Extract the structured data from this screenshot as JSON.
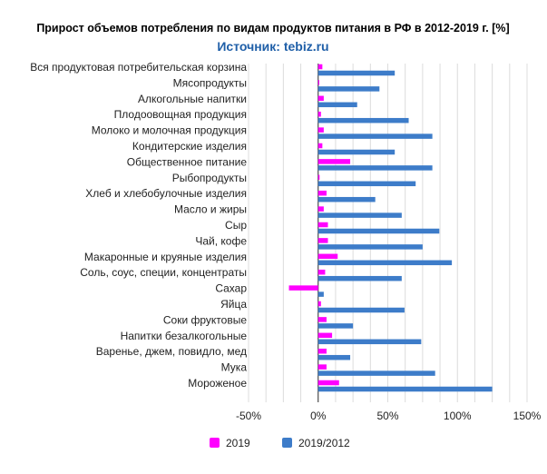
{
  "chart_data": {
    "type": "bar",
    "orientation": "horizontal",
    "title": "Прирост объемов потребления по видам продуктов питания в РФ в 2012-2019 г. [%]",
    "subtitle": "Источник: tebiz.ru",
    "categories": [
      "Вся продуктовая потребительская корзина",
      "Мясопродукты",
      "Алкогольные напитки",
      "Плодоовощная продукция",
      "Молоко и молочная продукция",
      "Кондитерские изделия",
      "Общественное питание",
      "Рыбопродукты",
      "Хлеб и хлебобулочные изделия",
      "Масло и жиры",
      "Сыр",
      "Чай, кофе",
      "Макаронные и круяные изделия",
      "Соль, соус, специи, концентраты",
      "Сахар",
      "Яйца",
      "Соки фруктовые",
      "Напитки безалкогольные",
      "Варенье, джем, повидло, мед",
      "Мука",
      "Мороженое"
    ],
    "series": [
      {
        "name": "2019",
        "color": "#ff00ff",
        "values": [
          3,
          0,
          4,
          2,
          4,
          3,
          23,
          1,
          6,
          4,
          7,
          7,
          14,
          5,
          -21,
          2,
          6,
          10,
          6,
          6,
          15
        ]
      },
      {
        "name": "2019/2012",
        "color": "#3d7cc9",
        "values": [
          55,
          44,
          28,
          65,
          82,
          55,
          82,
          70,
          41,
          60,
          87,
          75,
          96,
          60,
          4,
          62,
          25,
          74,
          23,
          84,
          125
        ]
      }
    ],
    "xlim": [
      -50,
      150
    ],
    "xticks": [
      -50,
      0,
      50,
      100,
      150
    ],
    "xtick_labels": [
      "-50%",
      "0%",
      "50%",
      "100%",
      "150%"
    ],
    "grid": true,
    "legend_position": "bottom"
  }
}
